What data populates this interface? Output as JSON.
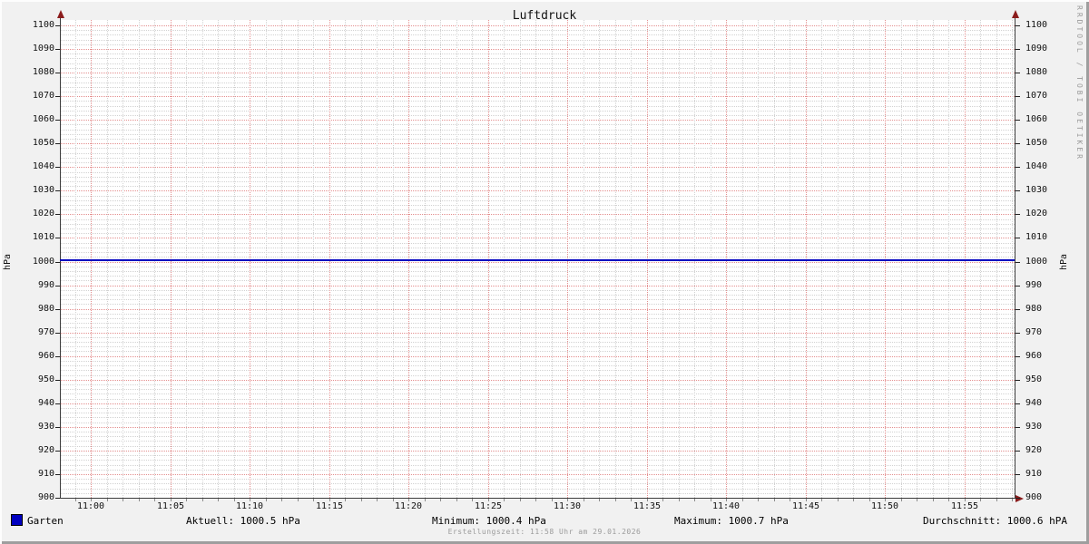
{
  "title": "Luftdruck",
  "watermark": "RRDTOOL / TOBI OETIKER",
  "footer_note": "Erstellungszeit: 11:58 Uhr am 29.01.2026",
  "colors": {
    "series_blue": "#0000c0",
    "major_grid_red": "#e48f8f",
    "minor_grid_gray": "#d2d2d2",
    "axis_dark": "#3d3d3d",
    "arrow_dark_red": "#8b1c1c",
    "background": "#f1f1f1",
    "plot_background": "#ffffff"
  },
  "y_axis": {
    "unit_label_left": "hPa",
    "unit_label_right": "hPa",
    "min": 900,
    "max": 1100,
    "major_step": 10,
    "minor_step": 2
  },
  "x_axis": {
    "tick_labels": [
      "11:00",
      "11:05",
      "11:10",
      "11:15",
      "11:20",
      "11:25",
      "11:30",
      "11:35",
      "11:40",
      "11:45",
      "11:50",
      "11:55"
    ],
    "minutes_before_first_label": 1,
    "minutes_after_first_label": 58
  },
  "legend": {
    "series_label": "Garten",
    "stats": [
      {
        "text": "Aktuell: 1000.5 hPa"
      },
      {
        "text": "Minimum: 1000.4 hPa"
      },
      {
        "text": "Maximum: 1000.7 hPa"
      },
      {
        "text": "Durchschnitt: 1000.6 hPA"
      }
    ]
  },
  "chart_data": {
    "type": "line",
    "title": "Luftdruck",
    "ylabel": "hPa",
    "ylim": [
      900,
      1100
    ],
    "y_major_step": 10,
    "y_minor_step": 2,
    "grid": "on",
    "legend_position": "bottom",
    "x": [
      "11:00",
      "11:05",
      "11:10",
      "11:15",
      "11:20",
      "11:25",
      "11:30",
      "11:35",
      "11:40",
      "11:45",
      "11:50",
      "11:55"
    ],
    "series": [
      {
        "name": "Garten",
        "color": "#0000c0",
        "values": [
          1000.5,
          1000.5,
          1000.5,
          1000.5,
          1000.5,
          1000.5,
          1000.5,
          1000.5,
          1000.5,
          1000.5,
          1000.5,
          1000.5
        ]
      }
    ],
    "stats": {
      "current": 1000.5,
      "minimum": 1000.4,
      "maximum": 1000.7,
      "average": 1000.6
    }
  }
}
